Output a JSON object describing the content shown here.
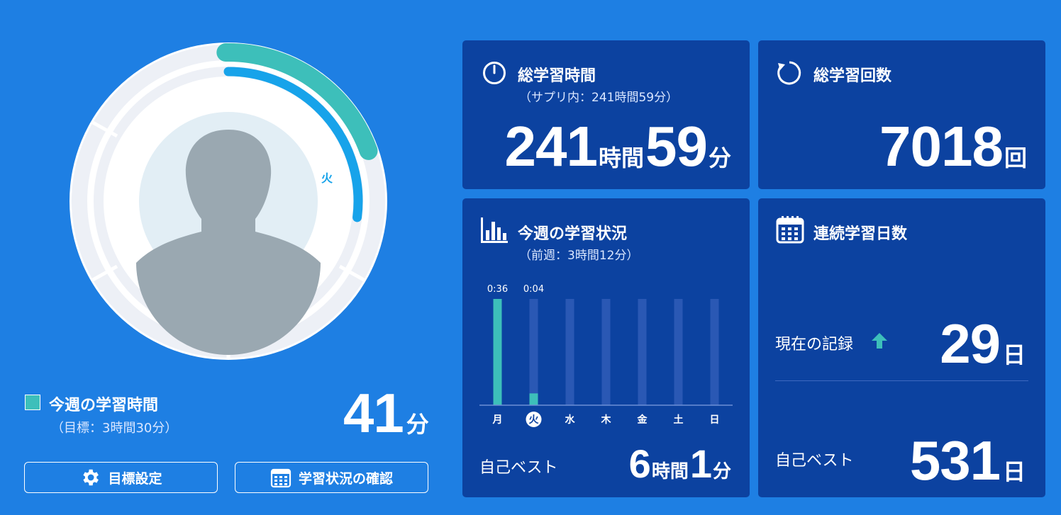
{
  "weekly": {
    "title": "今週の学習時間",
    "goal": "（目標：3時間30分）",
    "value": "41",
    "unit": "分",
    "goal_button": "目標設定",
    "status_button": "学習状況の確認",
    "ring_day_label": "火",
    "ring_progress": {
      "outer_fraction": 0.195,
      "inner_fraction": 0.27
    }
  },
  "total_time": {
    "title": "総学習時間",
    "sub": "（サプリ内：241時間59分）",
    "hours": "241",
    "hours_unit": "時間",
    "minutes": "59",
    "minutes_unit": "分"
  },
  "total_count": {
    "title": "総学習回数",
    "value": "7018",
    "unit": "回"
  },
  "week_status": {
    "title": "今週の学習状況",
    "sub": "（前週：3時間12分）",
    "best_label": "自己ベスト",
    "best_hours": "6",
    "best_hours_unit": "時間",
    "best_minutes": "1",
    "best_minutes_unit": "分"
  },
  "chart_data": {
    "type": "bar",
    "categories": [
      "月",
      "火",
      "水",
      "木",
      "金",
      "土",
      "日"
    ],
    "values": [
      36,
      4,
      0,
      0,
      0,
      0,
      0
    ],
    "data_labels": [
      "0:36",
      "0:04",
      "",
      "",
      "",
      "",
      ""
    ],
    "highlight": "火",
    "ylim": [
      0,
      36
    ],
    "colors": {
      "bar": "#3dbfba",
      "track": "#2a58b4",
      "axis": "#6d8fd6"
    }
  },
  "streak": {
    "title": "連続学習日数",
    "current_label": "現在の記録",
    "current_value": "29",
    "current_unit": "日",
    "best_label": "自己ベスト",
    "best_value": "531",
    "best_unit": "日"
  },
  "colors": {
    "background": "#1e7fe3",
    "panel": "#0c42a0",
    "accent_teal": "#3dbfba",
    "accent_blue": "#17a3ea"
  },
  "icons": [
    "stopwatch-icon",
    "refresh-icon",
    "bar-chart-icon",
    "calendar-icon",
    "gear-icon",
    "arrow-up-icon",
    "avatar"
  ]
}
